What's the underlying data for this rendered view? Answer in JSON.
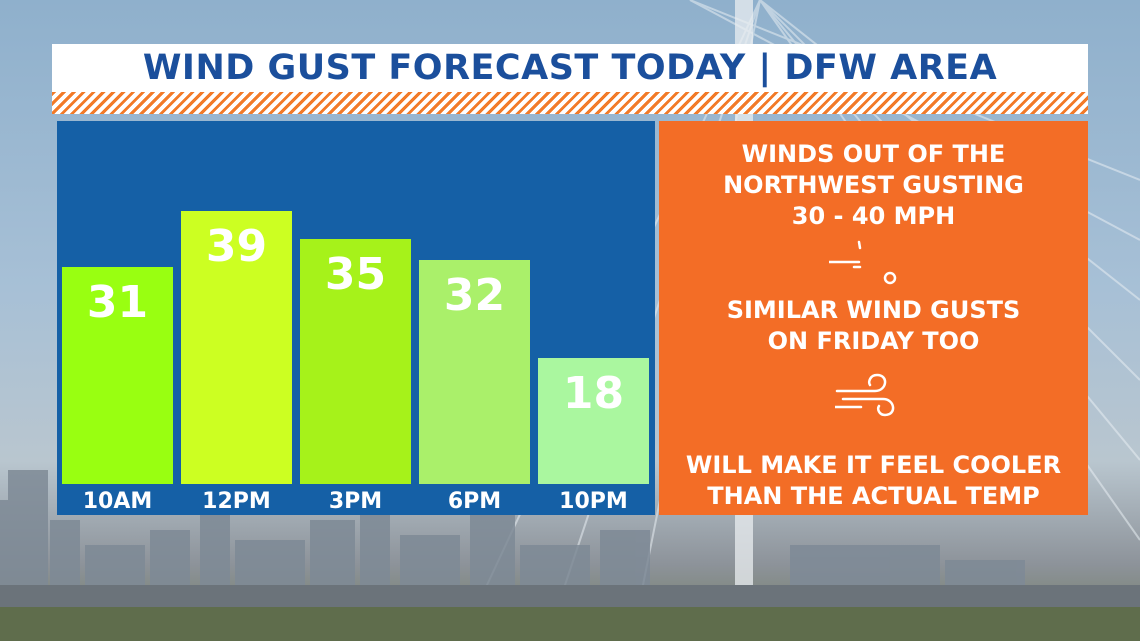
{
  "header": {
    "title": "WIND GUST FORECAST TODAY | DFW AREA"
  },
  "chart_data": {
    "type": "bar",
    "title": "WIND GUST FORECAST TODAY | DFW AREA",
    "categories": [
      "10AM",
      "12PM",
      "3PM",
      "6PM",
      "10PM"
    ],
    "values": [
      31,
      39,
      35,
      32,
      18
    ],
    "ylim": [
      0,
      45
    ],
    "bar_colors": [
      "#99ff11",
      "#ccff22",
      "#a6f21a",
      "#aaf06a",
      "#aaf79f"
    ],
    "grid": false
  },
  "info": {
    "line1": "WINDS OUT OF THE",
    "line2": "NORTHWEST GUSTING",
    "line3": "30 - 40 MPH",
    "line4": "SIMILAR WIND GUSTS",
    "line5": "ON FRIDAY TOO",
    "line6": "WILL MAKE IT FEEL COOLER",
    "line7": "THAN THE ACTUAL TEMP",
    "icon1": "wind-small-icon",
    "icon2": "wind-icon"
  },
  "colors": {
    "title_text": "#1b4f9c",
    "chart_panel": "#1560a6",
    "info_panel": "#f36d26",
    "stripe": "#f27a28",
    "label_band": "#1560a6"
  }
}
